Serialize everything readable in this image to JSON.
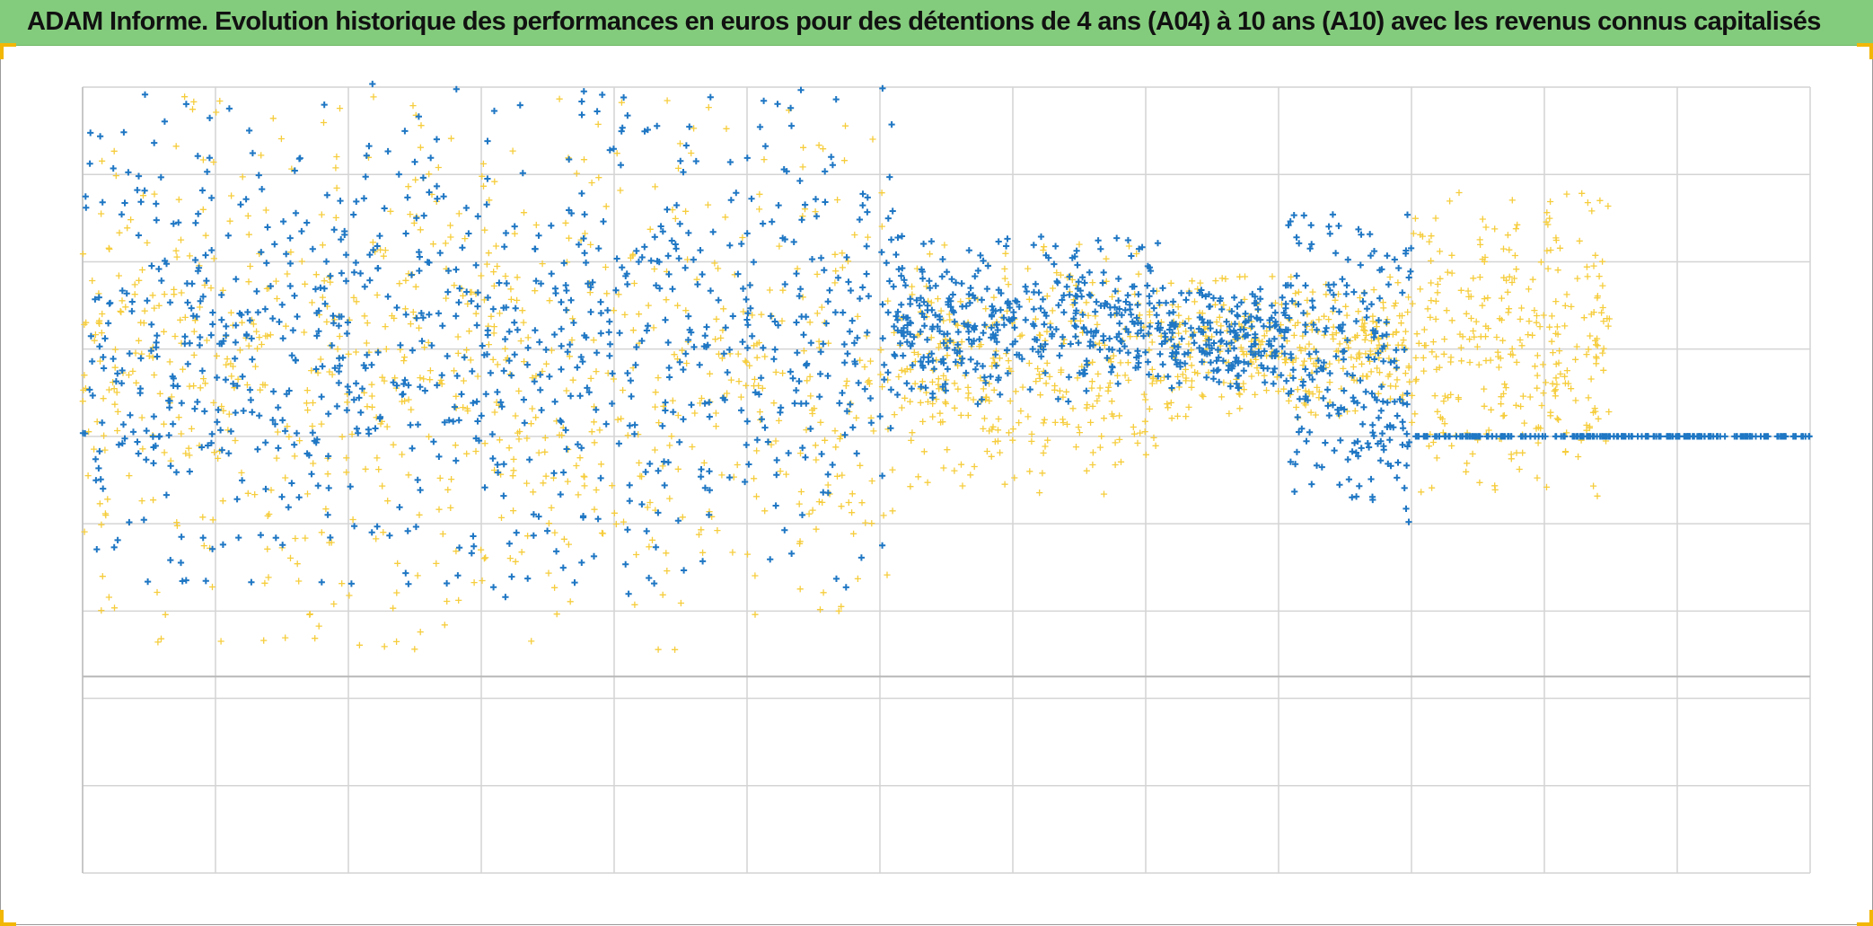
{
  "title": "ADAM Informe. Evolution historique des performances en euros pour des détentions de 4 ans (A04) à 10 ans (A10) avec les revenus connus capitalisés",
  "colors": {
    "header_bg": "#84cc7d",
    "series_blue": "#1f77c4",
    "series_yellow": "#f6cd3c",
    "gridline": "#d4d4d4",
    "zero_line": "#b8b8b8",
    "corner_accent": "#f2b705"
  },
  "chart_data": {
    "type": "scatter",
    "title": "ADAM Informe. Evolution historique des performances en euros pour des détentions de 4 ans (A04) à 10 ans (A10) avec les revenus connus capitalisés",
    "xlabel": "",
    "ylabel": "",
    "xlim": [
      0,
      13
    ],
    "ylim": [
      -5,
      4
    ],
    "x_gridlines": [
      0,
      1,
      2,
      3,
      4,
      5,
      6,
      7,
      8,
      9,
      10,
      11,
      12,
      13
    ],
    "y_gridlines": [
      -5,
      -4,
      -3,
      -2,
      -1,
      0,
      1,
      2,
      3,
      4
    ],
    "reference_line_y": -2.75,
    "grid": true,
    "legend": "none",
    "tick_labels_visible": false,
    "marker": "plus",
    "series_envelopes": [
      {
        "color": "blue",
        "segments": [
          {
            "x": [
              0,
              6.1
            ],
            "center": 0.85,
            "spread": [
              -2.7,
              3.2
            ],
            "count": 900
          },
          {
            "x": [
              6.1,
              8.1
            ],
            "center": 0.95,
            "spread": [
              -0.6,
              1.35
            ],
            "count": 380
          },
          {
            "x": [
              8.1,
              9.05
            ],
            "center": 0.95,
            "spread": [
              -0.4,
              0.75
            ],
            "count": 200
          },
          {
            "x": [
              9.05,
              10.0
            ],
            "center": 0.8,
            "spread": [
              -1.8,
              1.8
            ],
            "count": 220
          },
          {
            "x": [
              10.0,
              13.0
            ],
            "center": 0.0,
            "spread": [
              0,
              0
            ],
            "count": 220,
            "note": "flat at zero"
          }
        ]
      },
      {
        "color": "yellow",
        "segments": [
          {
            "x": [
              0,
              6.1
            ],
            "center": 0.6,
            "spread": [
              -3.05,
              3.3
            ],
            "count": 850
          },
          {
            "x": [
              6.1,
              8.1
            ],
            "center": 0.8,
            "spread": [
              -1.5,
              1.4
            ],
            "count": 330
          },
          {
            "x": [
              8.1,
              10.0
            ],
            "center": 0.95,
            "spread": [
              -0.8,
              0.9
            ],
            "count": 340
          },
          {
            "x": [
              10.0,
              11.5
            ],
            "center": 0.9,
            "spread": [
              -1.6,
              1.9
            ],
            "count": 300
          }
        ]
      }
    ]
  }
}
